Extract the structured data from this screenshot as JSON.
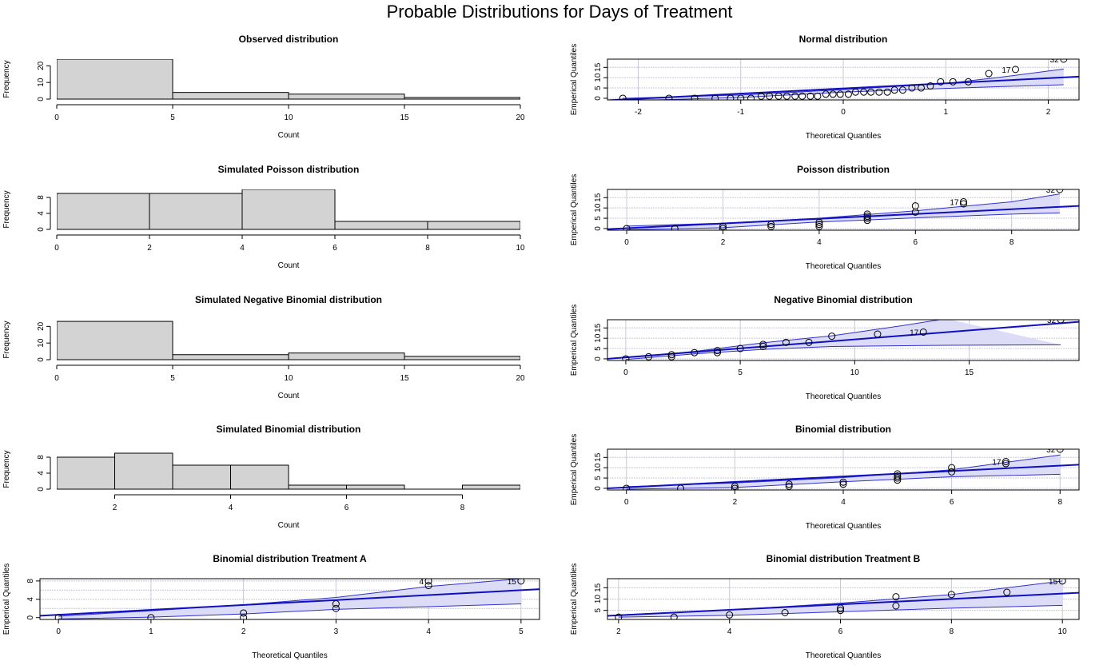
{
  "title": "Probable Distributions for Days of Treatment",
  "colors": {
    "bar_fill": "#d3d3d3",
    "grid": "#c8c8d8",
    "band_fill": "#dcdcf6",
    "band_line": "#3030d0",
    "fit_line": "#1010c0",
    "point": "#000000"
  },
  "chart_data": [
    {
      "type": "bar",
      "subtype": "histogram",
      "title": "Observed distribution",
      "xlabel": "Count",
      "ylabel": "Frequency",
      "bins": [
        [
          0,
          5
        ],
        [
          5,
          10
        ],
        [
          10,
          15
        ],
        [
          15,
          20
        ]
      ],
      "values": [
        24,
        4,
        3,
        1
      ],
      "xlim": [
        0,
        20
      ],
      "ylim": [
        0,
        24
      ],
      "xticks": [
        0,
        5,
        10,
        15,
        20
      ],
      "xtick_labels": [
        "0",
        "5",
        "10",
        "15",
        "20"
      ],
      "yticks": [
        0,
        10,
        20
      ],
      "ytick_labels": [
        "0",
        "10",
        "20"
      ]
    },
    {
      "type": "scatter",
      "subtype": "qq",
      "title": "Normal distribution",
      "xlabel": "Theoretical Quantiles",
      "ylabel": "Emperical Quantiles",
      "xlim": [
        -2.3,
        2.3
      ],
      "ylim": [
        -0.8,
        19
      ],
      "xticks": [
        -2,
        -1,
        0,
        1,
        2
      ],
      "xtick_labels": [
        "-2",
        "-1",
        "0",
        "1",
        "2"
      ],
      "yticks": [
        0,
        5,
        10,
        15
      ],
      "ytick_labels": [
        "0",
        "5",
        "10",
        "15"
      ],
      "x_grid": [
        -2,
        -1,
        0,
        1,
        2
      ],
      "y_grid": [
        0,
        5,
        10,
        15
      ],
      "x": [
        -2.15,
        -1.7,
        -1.45,
        -1.25,
        -1.1,
        -1.0,
        -0.9,
        -0.8,
        -0.72,
        -0.63,
        -0.55,
        -0.47,
        -0.4,
        -0.32,
        -0.25,
        -0.17,
        -0.1,
        -0.03,
        0.05,
        0.12,
        0.2,
        0.27,
        0.35,
        0.43,
        0.5,
        0.58,
        0.67,
        0.76,
        0.85,
        0.95,
        1.07,
        1.22,
        1.42,
        1.68,
        2.15
      ],
      "y": [
        0,
        0,
        0,
        0,
        0,
        0,
        0,
        1,
        1,
        1,
        1,
        1,
        1,
        1,
        1,
        2,
        2,
        2,
        2,
        3,
        3,
        3,
        3,
        3,
        4,
        4,
        5,
        5,
        6,
        8,
        8,
        8,
        12,
        14,
        19
      ],
      "fit": [
        [
          -2.3,
          -1.0
        ],
        [
          2.3,
          10.5
        ]
      ],
      "band_upper": [
        [
          -2.15,
          0.0
        ],
        [
          -1.0,
          1.6
        ],
        [
          0,
          4.2
        ],
        [
          1,
          7.2
        ],
        [
          1.5,
          10.0
        ],
        [
          2.15,
          14.2
        ]
      ],
      "band_lower": [
        [
          -2.15,
          -1.3
        ],
        [
          -1.0,
          0.4
        ],
        [
          0,
          3.0
        ],
        [
          1,
          4.8
        ],
        [
          1.5,
          5.6
        ],
        [
          2.15,
          6.6
        ]
      ],
      "point_labels": [
        {
          "x": 1.68,
          "y": 14,
          "text": "17"
        },
        {
          "x": 2.15,
          "y": 19,
          "text": "32"
        }
      ]
    },
    {
      "type": "bar",
      "subtype": "histogram",
      "title": "Simulated Poisson distribution",
      "xlabel": "Count",
      "ylabel": "Frequency",
      "bins": [
        [
          0,
          2
        ],
        [
          2,
          4
        ],
        [
          4,
          6
        ],
        [
          6,
          8
        ],
        [
          8,
          10
        ]
      ],
      "values": [
        9,
        9,
        10,
        2,
        2
      ],
      "xlim": [
        0,
        10
      ],
      "ylim": [
        0,
        10
      ],
      "xticks": [
        0,
        2,
        4,
        6,
        8,
        10
      ],
      "xtick_labels": [
        "0",
        "2",
        "4",
        "6",
        "8",
        "10"
      ],
      "yticks": [
        0,
        4,
        8
      ],
      "ytick_labels": [
        "0",
        "4",
        "8"
      ]
    },
    {
      "type": "scatter",
      "subtype": "qq",
      "title": "Poisson distribution",
      "xlabel": "Theoretical Quantiles",
      "ylabel": "Emperical Quantiles",
      "xlim": [
        -0.4,
        9.4
      ],
      "ylim": [
        -0.8,
        19
      ],
      "xticks": [
        0,
        2,
        4,
        6,
        8
      ],
      "xtick_labels": [
        "0",
        "2",
        "4",
        "6",
        "8"
      ],
      "yticks": [
        0,
        5,
        10,
        15
      ],
      "ytick_labels": [
        "0",
        "5",
        "10",
        "15"
      ],
      "x_grid": [
        0,
        2,
        4,
        6,
        8
      ],
      "y_grid": [
        0,
        5,
        10,
        15
      ],
      "x": [
        0,
        1,
        2,
        2,
        3,
        3,
        4,
        4,
        4,
        5,
        5,
        5,
        5,
        6,
        6,
        7,
        7,
        9
      ],
      "y": [
        0,
        0,
        0,
        1,
        1,
        2,
        1,
        2,
        3,
        4,
        5,
        6,
        7,
        8,
        11,
        12,
        13,
        19
      ],
      "fit": [
        [
          -0.4,
          -0.3
        ],
        [
          9.4,
          11.0
        ]
      ],
      "band_upper": [
        [
          0,
          1.2
        ],
        [
          2,
          2.6
        ],
        [
          4,
          5.0
        ],
        [
          6,
          8.6
        ],
        [
          8,
          13.0
        ],
        [
          9,
          16.8
        ]
      ],
      "band_lower": [
        [
          0,
          -0.6
        ],
        [
          2,
          0.4
        ],
        [
          4,
          3.2
        ],
        [
          6,
          5.2
        ],
        [
          8,
          7.0
        ],
        [
          9,
          7.6
        ]
      ],
      "point_labels": [
        {
          "x": 7,
          "y": 13,
          "text": "17"
        },
        {
          "x": 9,
          "y": 19,
          "text": "32"
        }
      ]
    },
    {
      "type": "bar",
      "subtype": "histogram",
      "title": "Simulated Negative Binomial distribution",
      "xlabel": "Count",
      "ylabel": "Frequency",
      "bins": [
        [
          0,
          5
        ],
        [
          5,
          10
        ],
        [
          10,
          15
        ],
        [
          15,
          20
        ]
      ],
      "values": [
        23,
        3,
        4,
        2
      ],
      "xlim": [
        0,
        20
      ],
      "ylim": [
        0,
        24
      ],
      "xticks": [
        0,
        5,
        10,
        15,
        20
      ],
      "xtick_labels": [
        "0",
        "5",
        "10",
        "15",
        "20"
      ],
      "yticks": [
        0,
        10,
        20
      ],
      "ytick_labels": [
        "0",
        "10",
        "20"
      ]
    },
    {
      "type": "scatter",
      "subtype": "qq",
      "title": "Negative Binomial distribution",
      "xlabel": "Theoretical Quantiles",
      "ylabel": "Emperical Quantiles",
      "xlim": [
        -0.8,
        19.8
      ],
      "ylim": [
        -0.8,
        19
      ],
      "xticks": [
        0,
        5,
        10,
        15
      ],
      "xtick_labels": [
        "0",
        "5",
        "10",
        "15"
      ],
      "yticks": [
        0,
        5,
        10,
        15
      ],
      "ytick_labels": [
        "0",
        "5",
        "10",
        "15"
      ],
      "x_grid": [
        0,
        5,
        10,
        15
      ],
      "y_grid": [
        0,
        5,
        10,
        15
      ],
      "x": [
        0,
        1,
        2,
        2,
        3,
        4,
        4,
        5,
        6,
        6,
        7,
        8,
        9,
        11,
        13,
        19
      ],
      "y": [
        0,
        1,
        1,
        2,
        3,
        3,
        4,
        5,
        6,
        7,
        8,
        8,
        11,
        12,
        13,
        19
      ],
      "fit": [
        [
          -0.8,
          0.0
        ],
        [
          19.8,
          18.0
        ]
      ],
      "band_upper": [
        [
          0,
          0.5
        ],
        [
          3,
          3.6
        ],
        [
          6,
          7.8
        ],
        [
          9,
          11.2
        ],
        [
          12,
          16.0
        ],
        [
          14,
          19.5
        ]
      ],
      "band_lower": [
        [
          0,
          -0.3
        ],
        [
          3,
          2.4
        ],
        [
          6,
          4.6
        ],
        [
          9,
          6.0
        ],
        [
          14,
          6.6
        ],
        [
          19,
          6.8
        ]
      ],
      "point_labels": [
        {
          "x": 13,
          "y": 13,
          "text": "17"
        },
        {
          "x": 19,
          "y": 19,
          "text": "32"
        }
      ]
    },
    {
      "type": "bar",
      "subtype": "histogram",
      "title": "Simulated Binomial distribution",
      "xlabel": "Count",
      "ylabel": "Frequency",
      "bins": [
        [
          1,
          2
        ],
        [
          2,
          3
        ],
        [
          3,
          4
        ],
        [
          4,
          5
        ],
        [
          5,
          6
        ],
        [
          6,
          7
        ],
        [
          7,
          8
        ],
        [
          8,
          9
        ]
      ],
      "values": [
        8,
        9,
        6,
        6,
        1,
        1,
        0,
        1
      ],
      "xlim": [
        1,
        9
      ],
      "ylim": [
        0,
        10
      ],
      "xticks": [
        2,
        4,
        6,
        8
      ],
      "xtick_labels": [
        "2",
        "4",
        "6",
        "8"
      ],
      "yticks": [
        0,
        4,
        8
      ],
      "ytick_labels": [
        "0",
        "4",
        "8"
      ]
    },
    {
      "type": "scatter",
      "subtype": "qq",
      "title": "Binomial distribution",
      "xlabel": "Theoretical Quantiles",
      "ylabel": "Emperical Quantiles",
      "xlim": [
        -0.35,
        8.35
      ],
      "ylim": [
        -0.8,
        19
      ],
      "xticks": [
        0,
        2,
        4,
        6,
        8
      ],
      "xtick_labels": [
        "0",
        "2",
        "4",
        "6",
        "8"
      ],
      "yticks": [
        0,
        5,
        10,
        15
      ],
      "ytick_labels": [
        "0",
        "5",
        "10",
        "15"
      ],
      "x_grid": [
        0,
        2,
        4,
        6,
        8
      ],
      "y_grid": [
        0,
        5,
        10,
        15
      ],
      "x": [
        0,
        1,
        2,
        2,
        3,
        3,
        4,
        4,
        5,
        5,
        5,
        5,
        6,
        6,
        7,
        7,
        8
      ],
      "y": [
        0,
        0,
        0,
        1,
        1,
        2,
        2,
        3,
        4,
        5,
        6,
        7,
        8,
        10,
        12,
        13,
        19
      ],
      "fit": [
        [
          -0.35,
          0.0
        ],
        [
          8.35,
          11.5
        ]
      ],
      "band_upper": [
        [
          0,
          0.8
        ],
        [
          2,
          2.6
        ],
        [
          4,
          5.2
        ],
        [
          6,
          9.0
        ],
        [
          8,
          16.2
        ]
      ],
      "band_lower": [
        [
          0,
          -0.4
        ],
        [
          2,
          0.4
        ],
        [
          4,
          3.2
        ],
        [
          6,
          5.6
        ],
        [
          8,
          6.8
        ]
      ],
      "point_labels": [
        {
          "x": 7,
          "y": 13,
          "text": "17"
        },
        {
          "x": 8,
          "y": 19,
          "text": "32"
        }
      ]
    },
    {
      "type": "scatter",
      "subtype": "qq",
      "title": "Binomial distribution Treatment A",
      "xlabel": "Theoretical Quantiles",
      "ylabel": "Emperical Quantiles",
      "xlim": [
        -0.2,
        5.2
      ],
      "ylim": [
        -0.4,
        8.5
      ],
      "xticks": [
        0,
        1,
        2,
        3,
        4,
        5
      ],
      "xtick_labels": [
        "0",
        "1",
        "2",
        "3",
        "4",
        "5"
      ],
      "yticks": [
        0,
        4,
        8
      ],
      "ytick_labels": [
        "0",
        "4",
        "8"
      ],
      "x_grid": [
        1,
        2,
        3,
        4,
        5
      ],
      "y_grid": [
        2,
        4,
        6,
        8
      ],
      "x": [
        0,
        1,
        2,
        2,
        3,
        3,
        4,
        4,
        5
      ],
      "y": [
        0,
        0,
        0,
        1,
        2,
        3,
        7,
        8,
        8
      ],
      "fit": [
        [
          -0.2,
          0.4
        ],
        [
          5.2,
          6.2
        ]
      ],
      "band_upper": [
        [
          0,
          0.3
        ],
        [
          1,
          1.5
        ],
        [
          2,
          2.8
        ],
        [
          3,
          4.4
        ],
        [
          4,
          6.8
        ],
        [
          5,
          8.5
        ]
      ],
      "band_lower": [
        [
          0,
          -0.3
        ],
        [
          1,
          0.1
        ],
        [
          2,
          0.8
        ],
        [
          3,
          1.8
        ],
        [
          4,
          2.4
        ],
        [
          5,
          3.0
        ]
      ],
      "point_labels": [
        {
          "x": 4,
          "y": 8,
          "text": "4"
        },
        {
          "x": 5,
          "y": 8,
          "text": "15"
        }
      ]
    },
    {
      "type": "scatter",
      "subtype": "qq",
      "title": "Binomial distribution Treatment B",
      "xlabel": "Theoretical Quantiles",
      "ylabel": "Emperical Quantiles",
      "xlim": [
        1.8,
        10.3
      ],
      "ylim": [
        1,
        19
      ],
      "xticks": [
        2,
        4,
        6,
        8,
        10
      ],
      "xtick_labels": [
        "2",
        "4",
        "6",
        "8",
        "10"
      ],
      "yticks": [
        5,
        10,
        15
      ],
      "ytick_labels": [
        "5",
        "10",
        "15"
      ],
      "x_grid": [
        2,
        4,
        6,
        8,
        10
      ],
      "y_grid": [
        5,
        10,
        15
      ],
      "x": [
        2,
        3,
        4,
        5,
        6,
        6,
        7,
        7,
        8,
        9,
        10
      ],
      "y": [
        2,
        2,
        3,
        4,
        5,
        6,
        11,
        7,
        12,
        13,
        18
      ],
      "fit": [
        [
          1.8,
          2.6
        ],
        [
          10.3,
          12.8
        ]
      ],
      "band_upper": [
        [
          2,
          3.0
        ],
        [
          4,
          5.2
        ],
        [
          6,
          8.2
        ],
        [
          8,
          12.0
        ],
        [
          10,
          18.0
        ]
      ],
      "band_lower": [
        [
          2,
          2.0
        ],
        [
          4,
          2.8
        ],
        [
          6,
          4.4
        ],
        [
          8,
          6.0
        ],
        [
          10,
          7.2
        ]
      ],
      "point_labels": [
        {
          "x": 10,
          "y": 18,
          "text": "15"
        }
      ]
    }
  ]
}
